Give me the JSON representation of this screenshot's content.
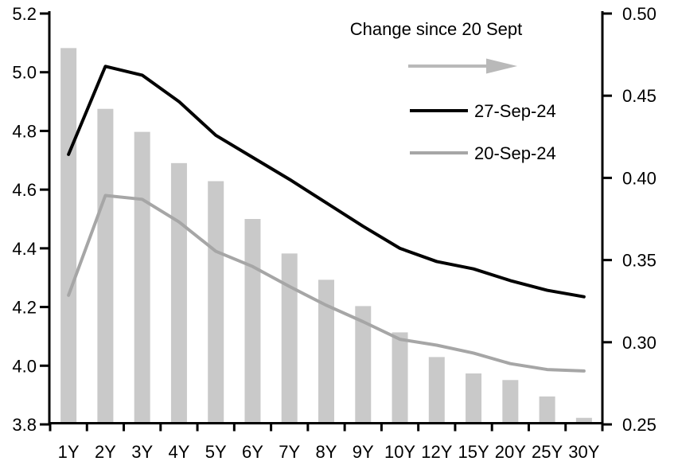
{
  "chart_data": {
    "type": "bar",
    "subtype": "bar-line-combo",
    "title": "",
    "categories": [
      "1Y",
      "2Y",
      "3Y",
      "4Y",
      "5Y",
      "6Y",
      "7Y",
      "8Y",
      "9Y",
      "10Y",
      "12Y",
      "15Y",
      "20Y",
      "25Y",
      "30Y"
    ],
    "left_axis": {
      "ticks": [
        "5.2",
        "5.0",
        "4.8",
        "4.6",
        "4.4",
        "4.2",
        "4.0",
        "3.8"
      ],
      "min": 3.8,
      "max": 5.2,
      "grid": "off"
    },
    "right_axis": {
      "ticks": [
        "0.50",
        "0.45",
        "0.40",
        "0.35",
        "0.30",
        "0.25"
      ],
      "min": 0.25,
      "max": 0.5,
      "grid": "off"
    },
    "bar_series": {
      "name": "Change since 20 Sept",
      "axis": "right",
      "color": "#c9c9c9",
      "values": [
        0.479,
        0.442,
        0.428,
        0.409,
        0.398,
        0.375,
        0.354,
        0.338,
        0.322,
        0.306,
        0.291,
        0.281,
        0.277,
        0.267,
        0.254
      ]
    },
    "series": [
      {
        "name": "27-Sep-24",
        "axis": "left",
        "color": "#000000",
        "values": [
          4.72,
          5.02,
          4.99,
          4.9,
          4.785,
          4.71,
          4.635,
          4.555,
          4.475,
          4.4,
          4.355,
          4.33,
          4.29,
          4.257,
          4.235
        ]
      },
      {
        "name": "20-Sep-24",
        "axis": "left",
        "color": "#a6a6a6",
        "values": [
          4.24,
          4.58,
          4.567,
          4.49,
          4.39,
          4.338,
          4.27,
          4.206,
          4.15,
          4.09,
          4.07,
          4.043,
          4.007,
          3.987,
          3.982
        ]
      }
    ],
    "legend": {
      "title": "Change since 20 Sept",
      "arrow_icon": "right-arrow",
      "arrow_color": "#b9b9b9",
      "position": "top-right-inside"
    },
    "axis_color": "#000000"
  }
}
